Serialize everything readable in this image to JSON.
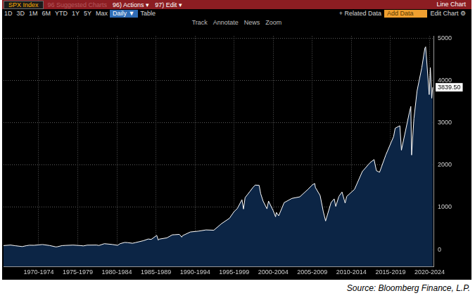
{
  "toolbar": {
    "security": "SPX Index",
    "suggested": "96 Suggested Charts",
    "actions": "96) Actions ▾",
    "edit": "97) Edit ▾",
    "chart_kind": "Line Chart",
    "periods": [
      "1D",
      "3D",
      "1M",
      "6M",
      "YTD",
      "1Y",
      "5Y",
      "Max"
    ],
    "frequency": "Daily ▼",
    "table": "Table",
    "related": "+ Related Data",
    "add_data": "Add Data",
    "edit_chart": "Edit Chart ⚙",
    "tools": [
      "Track",
      "Annotate",
      "News",
      "Zoom"
    ]
  },
  "source": "Source: Bloomberg Finance, L.P.",
  "chart_data": {
    "type": "line",
    "grid": true,
    "color": "#ffffff",
    "x": [
      1968.0,
      1968.9,
      1969.5,
      1970.4,
      1970.9,
      1971.3,
      1971.9,
      1972.9,
      1973.0,
      1973.9,
      1974.7,
      1974.9,
      1975.5,
      1976.0,
      1976.9,
      1977.9,
      1978.2,
      1978.7,
      1979.9,
      1980.2,
      1980.9,
      1981.9,
      1982.6,
      1982.9,
      1983.5,
      1983.9,
      1984.5,
      1984.9,
      1985.9,
      1986.5,
      1986.9,
      1987.6,
      1987.8,
      1987.9,
      1988.9,
      1989.6,
      1989.9,
      1990.5,
      1990.8,
      1990.9,
      1991.9,
      1992.9,
      1993.9,
      1994.9,
      1995.9,
      1996.9,
      1997.5,
      1997.9,
      1998.5,
      1998.7,
      1998.9,
      1999.5,
      1999.9,
      2000.2,
      2000.7,
      2000.9,
      2001.2,
      2001.7,
      2001.9,
      2002.5,
      2002.8,
      2002.9,
      2003.2,
      2003.9,
      2004.9,
      2005.9,
      2006.9,
      2007.5,
      2007.8,
      2007.9,
      2008.5,
      2008.9,
      2009.2,
      2009.9,
      2010.3,
      2010.5,
      2010.9,
      2011.3,
      2011.7,
      2011.9,
      2012.9,
      2013.9,
      2014.9,
      2015.4,
      2015.7,
      2016.1,
      2016.9,
      2017.9,
      2018.1,
      2018.7,
      2018.9,
      2019.9,
      2020.1,
      2020.2,
      2020.5,
      2020.9,
      2021.5,
      2021.9,
      2022.0,
      2022.45,
      2022.6,
      2022.78,
      2022.9
    ],
    "values": [
      96,
      108,
      92,
      72,
      92,
      104,
      102,
      119,
      120,
      97,
      64,
      69,
      95,
      100,
      107,
      95,
      88,
      106,
      108,
      98,
      140,
      122,
      102,
      140,
      170,
      165,
      150,
      167,
      211,
      250,
      242,
      336,
      224,
      247,
      278,
      350,
      353,
      360,
      295,
      330,
      417,
      436,
      466,
      459,
      616,
      741,
      900,
      970,
      1180,
      960,
      1229,
      1370,
      1469,
      1527,
      1520,
      1320,
      1150,
      965,
      1148,
      920,
      777,
      880,
      800,
      1112,
      1212,
      1248,
      1418,
      1530,
      1565,
      1468,
      1280,
      903,
      677,
      1115,
      1200,
      1022,
      1258,
      1363,
      1100,
      1258,
      1426,
      1848,
      2059,
      2130,
      1867,
      1829,
      2239,
      2674,
      2872,
      2930,
      2351,
      3231,
      3386,
      2237,
      3100,
      3756,
      4300,
      4766,
      4797,
      3667,
      4305,
      3577,
      3839.5
    ],
    "xlim": [
      1968,
      2023
    ],
    "xticks": [
      {
        "value": 1972.5,
        "label": "1970-1974"
      },
      {
        "value": 1977.5,
        "label": "1975-1979"
      },
      {
        "value": 1982.5,
        "label": "1980-1984"
      },
      {
        "value": 1987.5,
        "label": "1985-1989"
      },
      {
        "value": 1992.5,
        "label": "1990-1994"
      },
      {
        "value": 1997.5,
        "label": "1995-1999"
      },
      {
        "value": 2002.5,
        "label": "2000-2004"
      },
      {
        "value": 2007.5,
        "label": "2005-2009"
      },
      {
        "value": 2012.5,
        "label": "2010-2014"
      },
      {
        "value": 2017.5,
        "label": "2015-2019"
      },
      {
        "value": 2022.5,
        "label": "2020-2024"
      }
    ],
    "ylim": [
      -400,
      5050
    ],
    "yticks": [
      0,
      1000,
      2000,
      3000,
      4000,
      5000
    ],
    "annotations": [
      {
        "text": "3839.50",
        "value": 3839.5
      }
    ]
  }
}
